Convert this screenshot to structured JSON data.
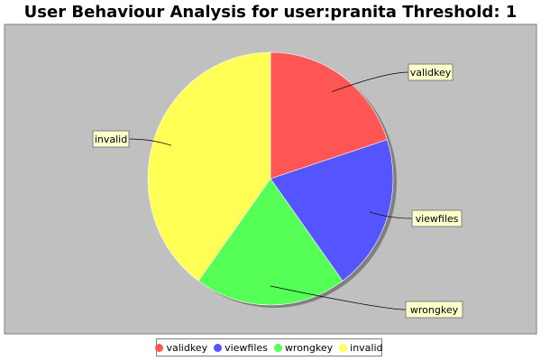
{
  "chart_data": {
    "type": "pie",
    "title": "User Behaviour Analysis for user:pranita Threshold: 1",
    "categories": [
      "validkey",
      "viewfiles",
      "wrongkey",
      "invalid"
    ],
    "values": [
      1,
      1,
      1,
      2
    ],
    "colors": [
      "#ff5555",
      "#5555ff",
      "#55ff55",
      "#ffff55"
    ],
    "legend_position": "bottom",
    "plot_background": "#c0c0c0",
    "label_background": "#ffffcc"
  }
}
